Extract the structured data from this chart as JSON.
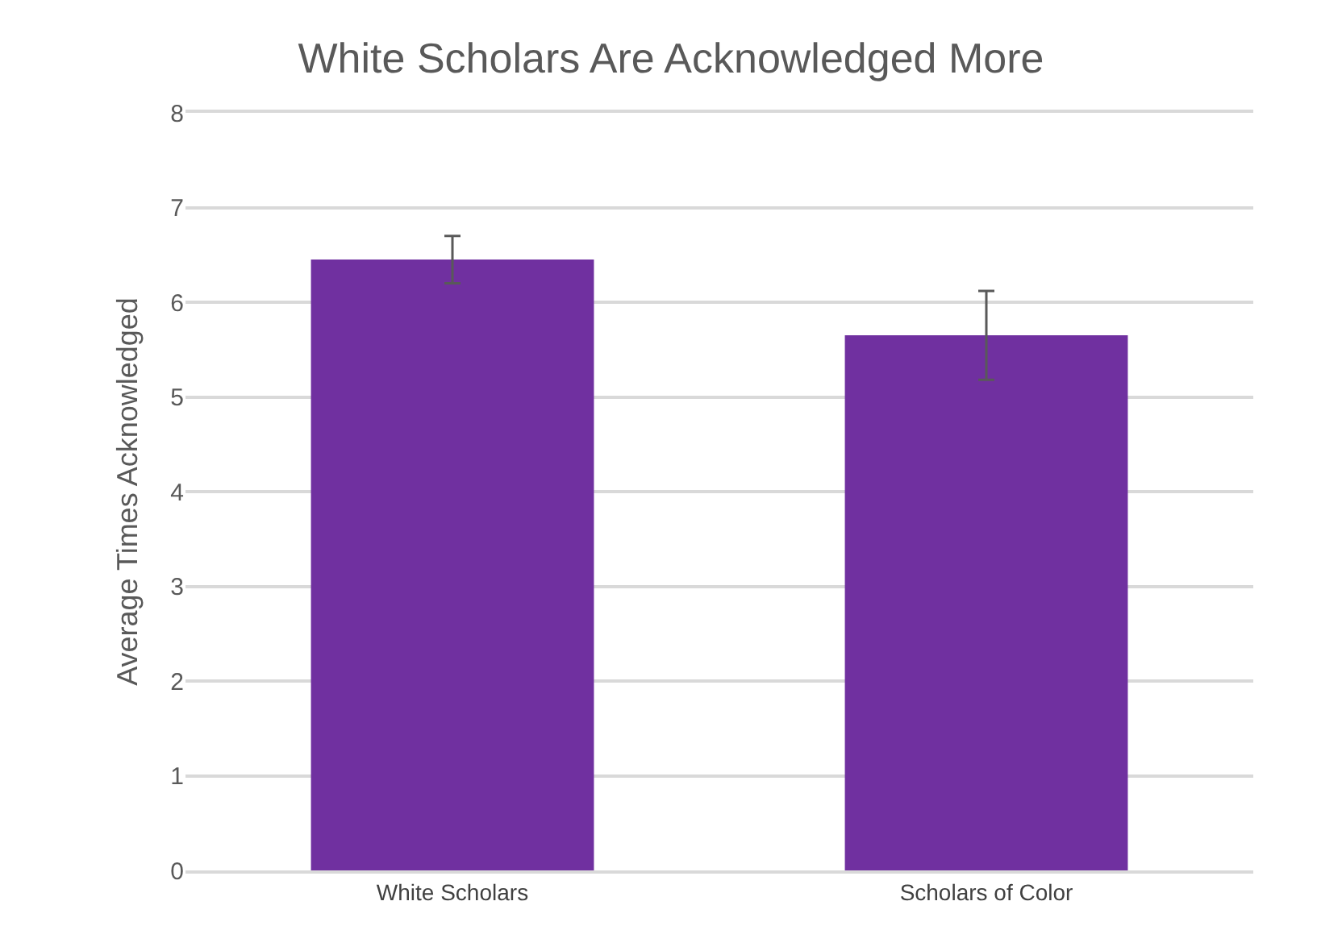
{
  "chart_data": {
    "type": "bar",
    "title": "White Scholars Are Acknowledged More",
    "ylabel": "Average Times Acknowledged",
    "categories": [
      "White Scholars",
      "Scholars of Color"
    ],
    "values": [
      6.45,
      5.65
    ],
    "errors": [
      0.25,
      0.47
    ],
    "color": "#7030a0",
    "ylim": [
      0,
      8
    ],
    "yticks": [
      0,
      1,
      2,
      3,
      4,
      5,
      6,
      7,
      8
    ],
    "grid": "y"
  }
}
